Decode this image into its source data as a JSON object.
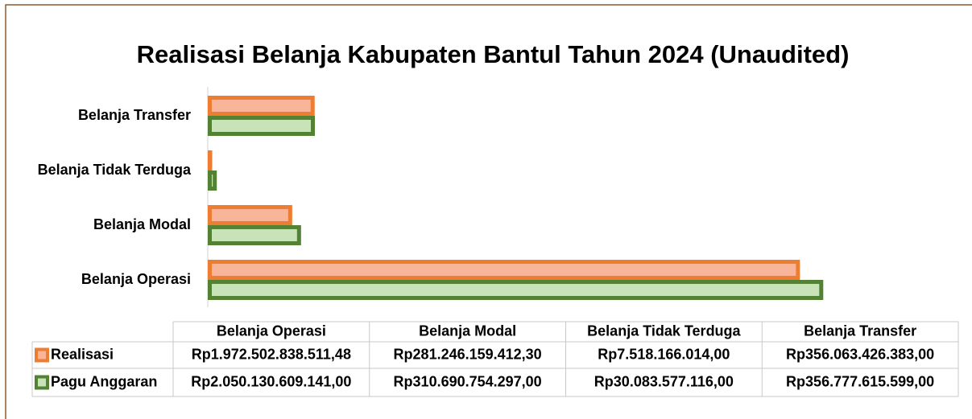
{
  "chart_data": {
    "type": "bar",
    "orientation": "horizontal",
    "title": "Realisasi Belanja Kabupaten Bantul Tahun 2024 (Unaudited)",
    "categories": [
      "Belanja Operasi",
      "Belanja Modal",
      "Belanja Tidak Terduga",
      "Belanja Transfer"
    ],
    "xlim": [
      0,
      2500000000000
    ],
    "series": [
      {
        "name": "Realisasi",
        "color": "#ed7d31",
        "fill": "#f8b59a",
        "values": [
          1972502838511.48,
          281246159412.3,
          7518166014.0,
          356063426383.0
        ],
        "value_labels": [
          "Rp1.972.502.838.511,48",
          "Rp281.246.159.412,30",
          "Rp7.518.166.014,00",
          "Rp356.063.426.383,00"
        ]
      },
      {
        "name": "Pagu Anggaran",
        "color": "#548235",
        "fill": "#c9e3b8",
        "values": [
          2050130609141.0,
          310690754297.0,
          30083577116.0,
          356777615599.0
        ],
        "value_labels": [
          "Rp2.050.130.609.141,00",
          "Rp310.690.754.297,00",
          "Rp30.083.577.116,00",
          "Rp356.777.615.599,00"
        ]
      }
    ]
  }
}
